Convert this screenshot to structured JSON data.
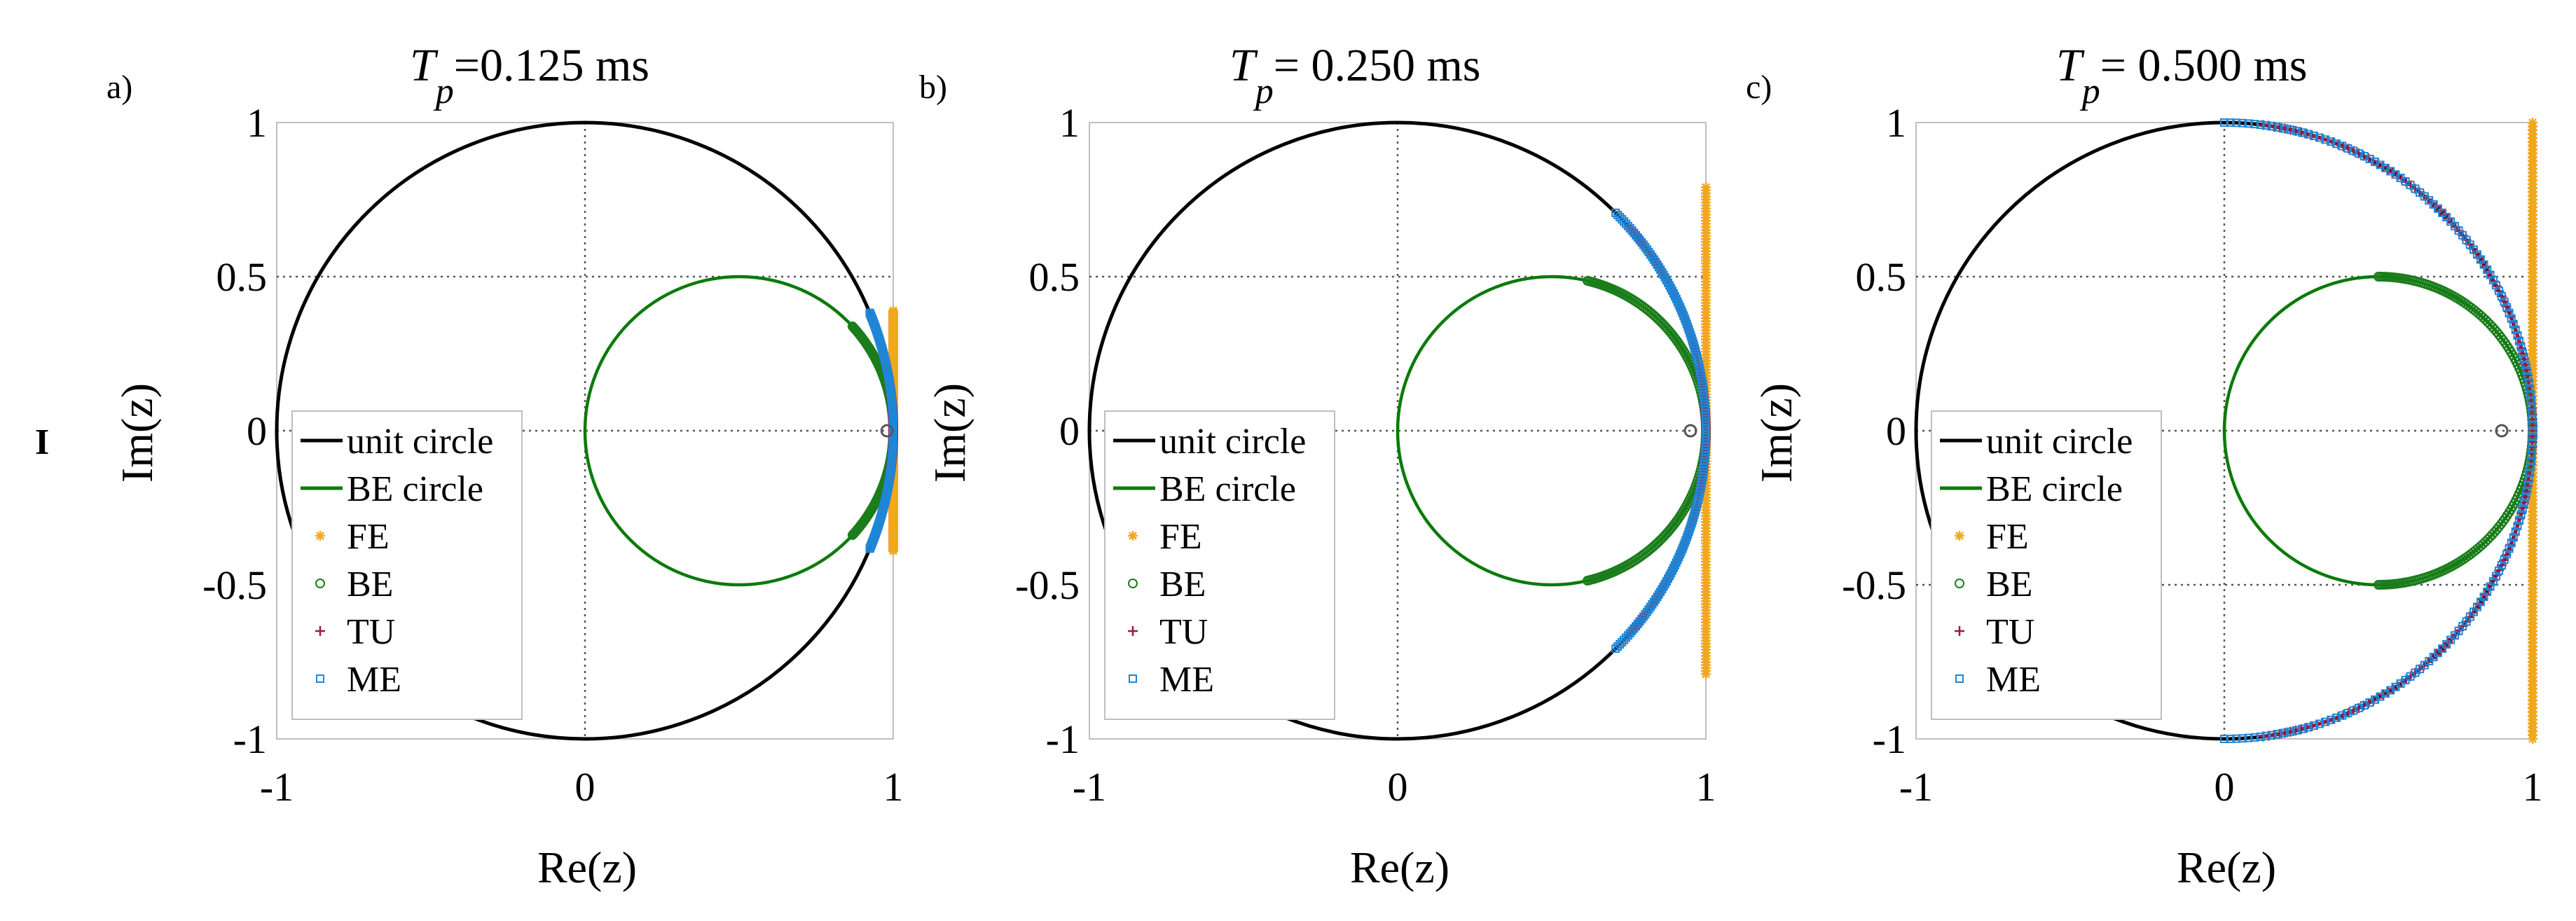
{
  "row_label": "I",
  "colors": {
    "unit_circle": "#000000",
    "be_circle": "#0a7a0a",
    "FE": "#f0a81e",
    "BE": "#1b7d1b",
    "TU": "#a0173f",
    "ME": "#1f86d6",
    "grid": "#555555",
    "axes_box": "#bfbfbf",
    "pole": "#555555"
  },
  "legend": {
    "unit_circle": "unit circle",
    "be_circle": "BE circle",
    "FE": "FE",
    "BE": "BE",
    "TU": "TU",
    "ME": "ME"
  },
  "chart_data": [
    {
      "type": "scatter",
      "panel_label": "a)",
      "title_prefix": "T",
      "title_sub": "p",
      "title_value": "=0.125 ms",
      "xlabel": "Re(z)",
      "ylabel": "Im(z)",
      "xlim": [
        -1,
        1
      ],
      "ylim": [
        -1,
        1
      ],
      "xticks": [
        "-1",
        "0",
        "1"
      ],
      "yticks": [
        "1",
        "0.5",
        "0",
        "-0.5",
        "-1"
      ],
      "ref_lines": {
        "x": [
          0
        ],
        "y": [
          0.5,
          0
        ]
      },
      "theta_max_deg": 22.5,
      "fe_im_max": 0.39,
      "pole": [
        0.98,
        0
      ]
    },
    {
      "type": "scatter",
      "panel_label": "b)",
      "title_prefix": "T",
      "title_sub": "p",
      "title_value": "= 0.250 ms",
      "xlabel": "Re(z)",
      "ylabel": "Im(z)",
      "xlim": [
        -1,
        1
      ],
      "ylim": [
        -1,
        1
      ],
      "xticks": [
        "-1",
        "0",
        "1"
      ],
      "yticks": [
        "1",
        "0.5",
        "0",
        "-0.5",
        "-1"
      ],
      "ref_lines": {
        "x": [
          0
        ],
        "y": [
          0.5,
          0
        ]
      },
      "theta_max_deg": 45,
      "fe_im_max": 0.79,
      "pole": [
        0.95,
        0
      ]
    },
    {
      "type": "scatter",
      "panel_label": "c)",
      "title_prefix": "T",
      "title_sub": "p",
      "title_value": "= 0.500 ms",
      "xlabel": "Re(z)",
      "ylabel": "Im(z)",
      "xlim": [
        -1,
        1
      ],
      "ylim": [
        -1,
        1
      ],
      "xticks": [
        "-1",
        "0",
        "1"
      ],
      "yticks": [
        "1",
        "0.5",
        "0",
        "-0.5",
        "-1"
      ],
      "ref_lines": {
        "x": [
          0
        ],
        "y": [
          0.5,
          0,
          -0.5
        ]
      },
      "theta_max_deg": 90,
      "fe_im_max": 1.0,
      "pole": [
        0.9,
        0
      ]
    }
  ]
}
